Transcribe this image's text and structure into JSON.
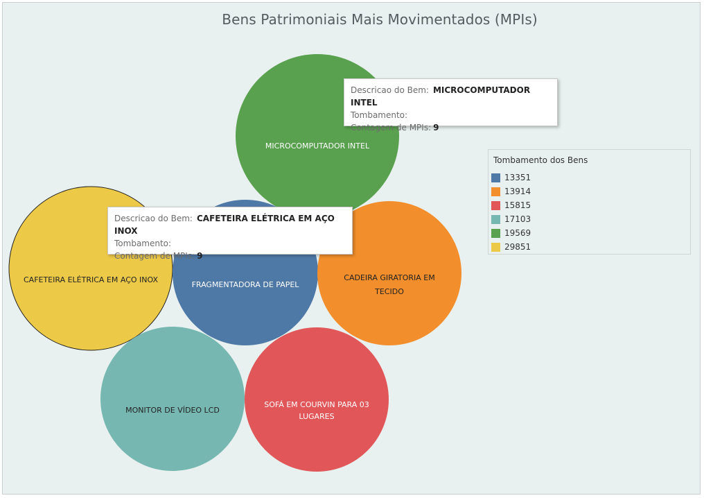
{
  "chart_data": {
    "type": "bubble",
    "title": "Bens Patrimoniais Mais Movimentados (MPIs)",
    "legend_title": "Tombamento dos Bens",
    "legend_position": "right",
    "legend": [
      {
        "label": "13351",
        "color": "#4e79a7"
      },
      {
        "label": "13914",
        "color": "#f28e2b"
      },
      {
        "label": "15815",
        "color": "#e15759"
      },
      {
        "label": "17103",
        "color": "#76b7b2"
      },
      {
        "label": "19569",
        "color": "#59a14f"
      },
      {
        "label": "29851",
        "color": "#edc948"
      }
    ],
    "bubbles": [
      {
        "label": "MICROCOMPUTADOR INTEL",
        "tombamento": "19569",
        "color": "#59a14f",
        "label_color": "#ffffff"
      },
      {
        "label": "CAFETEIRA ELÉTRICA EM AÇO INOX",
        "tombamento": "29851",
        "color": "#edc948",
        "label_color": "#222222"
      },
      {
        "label": "FRAGMENTADORA DE PAPEL",
        "tombamento": "13351",
        "color": "#4e79a7",
        "label_color": "#ffffff"
      },
      {
        "label": "CADEIRA GIRATORIA EM TECIDO",
        "tombamento": "13914",
        "color": "#f28e2b",
        "label_color": "#222222"
      },
      {
        "label": "MONITOR DE VÍDEO LCD",
        "tombamento": "17103",
        "color": "#76b7b2",
        "label_color": "#222222"
      },
      {
        "label": "SOFÁ EM COURVIN PARA 03 LUGARES",
        "tombamento": "15815",
        "color": "#e15759",
        "label_color": "#ffffff"
      }
    ]
  },
  "tooltips": [
    {
      "desc_key": "Descricao do Bem:",
      "desc_val": "MICROCOMPUTADOR INTEL",
      "tomb_key": "Tombamento:",
      "count_key": "Contagem de MPIs:",
      "count_val": "9"
    },
    {
      "desc_key": "Descricao do Bem:",
      "desc_val": "CAFETEIRA ELÉTRICA EM AÇO INOX",
      "tomb_key": "Tombamento:",
      "count_key": "Contagem de MPIs:",
      "count_val": "9"
    }
  ]
}
